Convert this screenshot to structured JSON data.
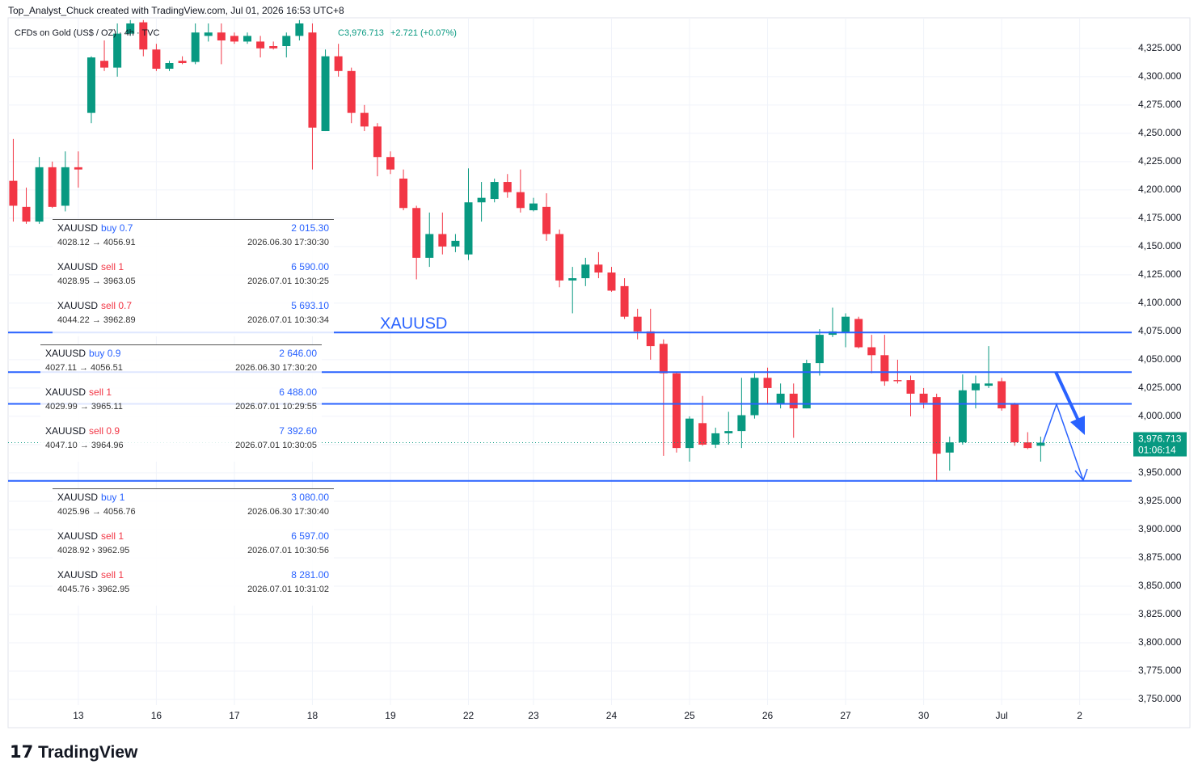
{
  "watermark": "Top_Analyst_Chuck created with TradingView.com, Jul 01, 2026 16:53 UTC+8",
  "logo": "TradingView",
  "chart_data": {
    "type": "candlestick",
    "title": "CFDs on Gold (US$ / OZ) · 4h · TVC",
    "last_close_label": "C3,976.713",
    "change": "+2.721 (+0.07%)",
    "price_label": "3,976.713",
    "countdown": "01:06:14",
    "up_color": "#089981",
    "down_color": "#f23645",
    "level_color": "#2962ff",
    "level_label": "XAUUSD",
    "levels": [
      4074,
      4039,
      4011,
      3943
    ],
    "grid": true,
    "xlim": [
      -0.4,
      86
    ],
    "xticks": [
      {
        "value": 5,
        "label": "13"
      },
      {
        "value": 11,
        "label": "16"
      },
      {
        "value": 17,
        "label": "17"
      },
      {
        "value": 23,
        "label": "18"
      },
      {
        "value": 29,
        "label": "19"
      },
      {
        "value": 35,
        "label": "22"
      },
      {
        "value": 40,
        "label": "23"
      },
      {
        "value": 46,
        "label": "24"
      },
      {
        "value": 52,
        "label": "25"
      },
      {
        "value": 58,
        "label": "26"
      },
      {
        "value": 64,
        "label": "27"
      },
      {
        "value": 70,
        "label": "30"
      },
      {
        "value": 76,
        "label": "Jul"
      },
      {
        "value": 82,
        "label": "2"
      }
    ],
    "ylim": [
      3745,
      4352
    ],
    "yticks": [
      {
        "value": 3750,
        "label": "3,750.000"
      },
      {
        "value": 3775,
        "label": "3,775.000"
      },
      {
        "value": 3800,
        "label": "3,800.000"
      },
      {
        "value": 3825,
        "label": "3,825.000"
      },
      {
        "value": 3850,
        "label": "3,850.000"
      },
      {
        "value": 3875,
        "label": "3,875.000"
      },
      {
        "value": 3900,
        "label": "3,900.000"
      },
      {
        "value": 3925,
        "label": "3,925.000"
      },
      {
        "value": 3950,
        "label": "3,950.000"
      },
      {
        "value": 3975,
        "label": "3,975.000"
      },
      {
        "value": 4000,
        "label": "4,000.000"
      },
      {
        "value": 4025,
        "label": "4,025.000"
      },
      {
        "value": 4050,
        "label": "4,050.000"
      },
      {
        "value": 4075,
        "label": "4,075.000"
      },
      {
        "value": 4100,
        "label": "4,100.000"
      },
      {
        "value": 4125,
        "label": "4,125.000"
      },
      {
        "value": 4150,
        "label": "4,150.000"
      },
      {
        "value": 4175,
        "label": "4,175.000"
      },
      {
        "value": 4200,
        "label": "4,200.000"
      },
      {
        "value": 4225,
        "label": "4,225.000"
      },
      {
        "value": 4250,
        "label": "4,250.000"
      },
      {
        "value": 4275,
        "label": "4,275.000"
      },
      {
        "value": 4300,
        "label": "4,300.000"
      },
      {
        "value": 4325,
        "label": "4,325.000"
      }
    ],
    "ohlc": [
      [
        4208,
        4245,
        4172,
        4186
      ],
      [
        4185,
        4202,
        4170,
        4172
      ],
      [
        4172,
        4229,
        4170,
        4220
      ],
      [
        4220,
        4225,
        4184,
        4185
      ],
      [
        4186,
        4234,
        4181,
        4220
      ],
      [
        4220,
        4234,
        4202,
        4218
      ],
      [
        4268,
        4318,
        4259,
        4317
      ],
      [
        4314,
        4332,
        4305,
        4308
      ],
      [
        4308,
        4347,
        4300,
        4338
      ],
      [
        4338,
        4350,
        4336,
        4347
      ],
      [
        4348,
        4350,
        4318,
        4324
      ],
      [
        4324,
        4329,
        4305,
        4307
      ],
      [
        4307,
        4314,
        4305,
        4312
      ],
      [
        4314,
        4318,
        4311,
        4312
      ],
      [
        4313,
        4347,
        4311,
        4339
      ],
      [
        4336,
        4347,
        4331,
        4339
      ],
      [
        4339,
        4347,
        4311,
        4332
      ],
      [
        4336,
        4339,
        4329,
        4331
      ],
      [
        4331,
        4339,
        4329,
        4336
      ],
      [
        4331,
        4336,
        4317,
        4325
      ],
      [
        4327,
        4331,
        4324,
        4325
      ],
      [
        4327,
        4339,
        4317,
        4336
      ],
      [
        4336,
        4350,
        4332,
        4347
      ],
      [
        4339,
        4347,
        4218,
        4255
      ],
      [
        4252,
        4324,
        4252,
        4318
      ],
      [
        4318,
        4329,
        4300,
        4305
      ],
      [
        4305,
        4308,
        4259,
        4268
      ],
      [
        4268,
        4275,
        4252,
        4256
      ],
      [
        4256,
        4259,
        4212,
        4229
      ],
      [
        4229,
        4234,
        4214,
        4218
      ],
      [
        4210,
        4218,
        4182,
        4184
      ],
      [
        4184,
        4186,
        4121,
        4140
      ],
      [
        4140,
        4180,
        4132,
        4161
      ],
      [
        4161,
        4180,
        4143,
        4150
      ],
      [
        4150,
        4161,
        4145,
        4155
      ],
      [
        4143,
        4219,
        4138,
        4189
      ],
      [
        4189,
        4207,
        4172,
        4193
      ],
      [
        4192,
        4210,
        4189,
        4207
      ],
      [
        4207,
        4214,
        4193,
        4198
      ],
      [
        4198,
        4218,
        4180,
        4184
      ],
      [
        4182,
        4193,
        4181,
        4188
      ],
      [
        4185,
        4197,
        4155,
        4161
      ],
      [
        4161,
        4165,
        4114,
        4120
      ],
      [
        4120,
        4132,
        4091,
        4122
      ],
      [
        4122,
        4140,
        4115,
        4134
      ],
      [
        4134,
        4145,
        4122,
        4127
      ],
      [
        4127,
        4132,
        4110,
        4111
      ],
      [
        4115,
        4122,
        4086,
        4088
      ],
      [
        4088,
        4095,
        4068,
        4075
      ],
      [
        4075,
        4095,
        4050,
        4062
      ],
      [
        4064,
        4068,
        3965,
        4038
      ],
      [
        4038,
        4039,
        3968,
        3972
      ],
      [
        3972,
        4000,
        3960,
        3998
      ],
      [
        3994,
        4018,
        3974,
        3975
      ],
      [
        3975,
        3990,
        3972,
        3985
      ],
      [
        3985,
        4004,
        3975,
        3987
      ],
      [
        3987,
        4034,
        3972,
        4001
      ],
      [
        4001,
        4038,
        3998,
        4034
      ],
      [
        4034,
        4043,
        4011,
        4025
      ],
      [
        4011,
        4029,
        4007,
        4020
      ],
      [
        4020,
        4029,
        3981,
        4007
      ],
      [
        4007,
        4050,
        4007,
        4047
      ],
      [
        4047,
        4077,
        4036,
        4072
      ],
      [
        4072,
        4096,
        4070,
        4075
      ],
      [
        4074,
        4091,
        4061,
        4088
      ],
      [
        4086,
        4088,
        4060,
        4061
      ],
      [
        4061,
        4072,
        4038,
        4054
      ],
      [
        4054,
        4072,
        4027,
        4031
      ],
      [
        4032,
        4050,
        4029,
        4031
      ],
      [
        4032,
        4036,
        4000,
        4020
      ],
      [
        4020,
        4025,
        4007,
        4012
      ],
      [
        4017,
        4020,
        3943,
        3967
      ],
      [
        3968,
        3982,
        3952,
        3977
      ],
      [
        3977,
        4037,
        3975,
        4023
      ],
      [
        4023,
        4036,
        4007,
        4029
      ],
      [
        4027,
        4062,
        4025,
        4029
      ],
      [
        4031,
        4034,
        4005,
        4007
      ],
      [
        4011,
        4012,
        3974,
        3977
      ],
      [
        3977,
        3986,
        3971,
        3972
      ],
      [
        3974,
        3982,
        3960,
        3976.713
      ]
    ]
  },
  "trade_panels": [
    {
      "entries": [
        {
          "symbol": "XAUUSD",
          "side": "buy 0.7",
          "color": "#2962ff",
          "prices": "4028.12 → 4056.91",
          "profit": "2 015.30",
          "time": "2026.06.30 17:30:30"
        },
        {
          "symbol": "XAUUSD",
          "side": "sell 1",
          "color": "#f23645",
          "prices": "4028.95 → 3963.05",
          "profit": "6 590.00",
          "time": "2026.07.01 10:30:25"
        },
        {
          "symbol": "XAUUSD",
          "side": "sell 0.7",
          "color": "#f23645",
          "prices": "4044.22 → 3962.89",
          "profit": "5 693.10",
          "time": "2026.07.01 10:30:34"
        }
      ]
    },
    {
      "entries": [
        {
          "symbol": "XAUUSD",
          "side": "buy 0.9",
          "color": "#2962ff",
          "prices": "4027.11 → 4056.51",
          "profit": "2 646.00",
          "time": "2026.06.30 17:30:20"
        },
        {
          "symbol": "XAUUSD",
          "side": "sell 1",
          "color": "#f23645",
          "prices": "4029.99 → 3965.11",
          "profit": "6 488.00",
          "time": "2026.07.01 10:29:55"
        },
        {
          "symbol": "XAUUSD",
          "side": "sell 0.9",
          "color": "#f23645",
          "prices": "4047.10 → 3964.96",
          "profit": "7 392.60",
          "time": "2026.07.01 10:30:05"
        }
      ]
    },
    {
      "entries": [
        {
          "symbol": "XAUUSD",
          "side": "buy 1",
          "color": "#2962ff",
          "prices": "4025.96 → 4056.76",
          "profit": "3 080.00",
          "time": "2026.06.30 17:30:40"
        },
        {
          "symbol": "XAUUSD",
          "side": "sell 1",
          "color": "#f23645",
          "prices": "4028.92 › 3962.95",
          "profit": "6 597.00",
          "time": "2026.07.01 10:30:56"
        },
        {
          "symbol": "XAUUSD",
          "side": "sell 1",
          "color": "#f23645",
          "prices": "4045.76 › 3962.95",
          "profit": "8 281.00",
          "time": "2026.07.01 10:31:02"
        }
      ]
    }
  ]
}
